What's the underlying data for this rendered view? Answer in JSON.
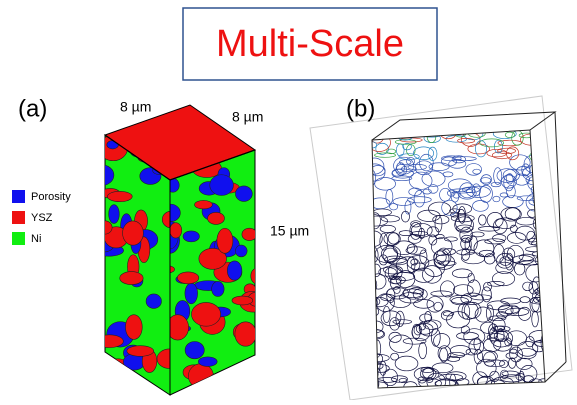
{
  "title": "Multi-Scale",
  "panels": [
    {
      "label": "(a)",
      "dimensions": {
        "width": "8 µm",
        "depth": "8 µm",
        "height": "15 µm"
      },
      "legend": [
        {
          "label": "Porosity",
          "color": "#1010ee"
        },
        {
          "label": "YSZ",
          "color": "#ee1111"
        },
        {
          "label": "Ni",
          "color": "#11ee11"
        }
      ]
    },
    {
      "label": "(b)"
    }
  ]
}
